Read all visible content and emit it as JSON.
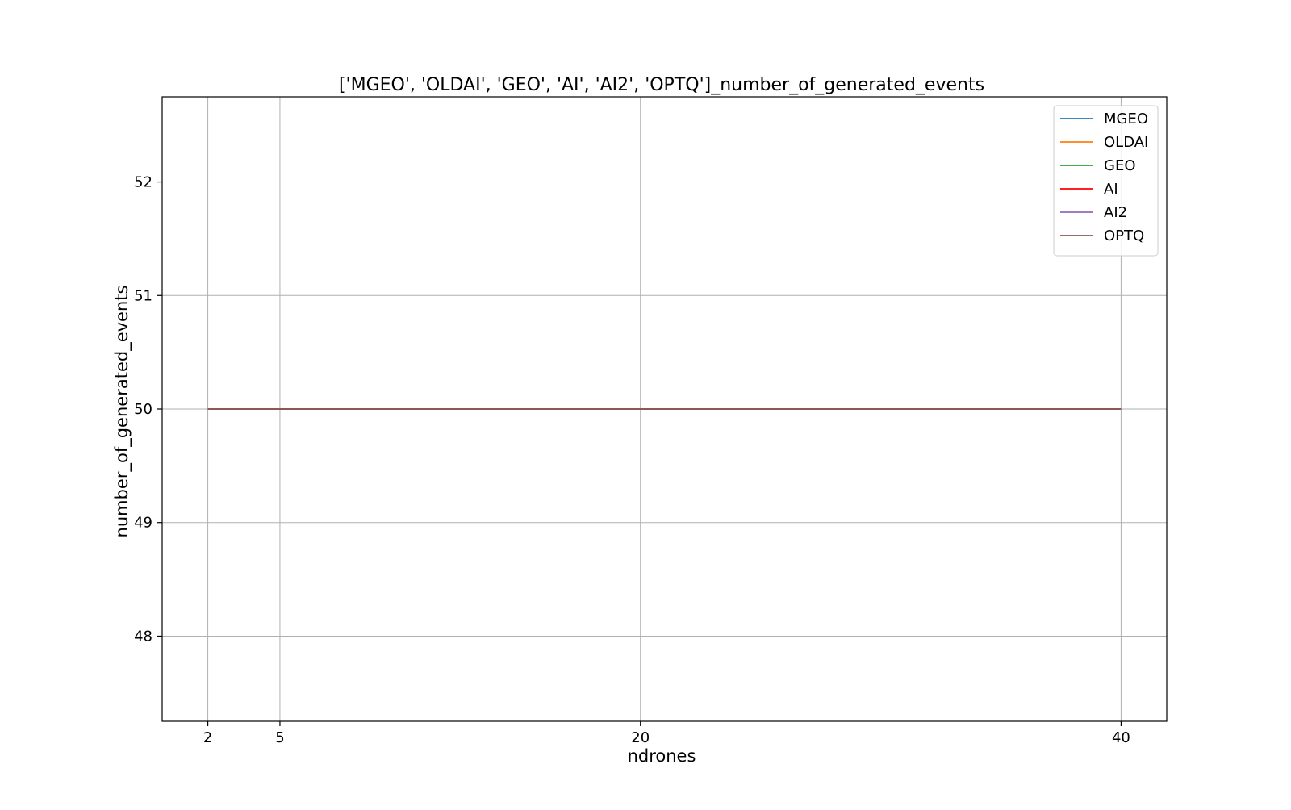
{
  "chart_data": {
    "type": "line",
    "title": "['MGEO', 'OLDAI', 'GEO', 'AI', 'AI2', 'OPTQ']_number_of_generated_events",
    "xlabel": "ndrones",
    "ylabel": "number_of_generated_events",
    "x": [
      2,
      5,
      20,
      40
    ],
    "x_ticks": [
      2,
      5,
      20,
      40
    ],
    "y_ticks": [
      48,
      49,
      50,
      51,
      52
    ],
    "xlim": [
      0.1,
      41.9
    ],
    "ylim": [
      47.25,
      52.75
    ],
    "grid": true,
    "legend_position": "top-right",
    "series": [
      {
        "name": "MGEO",
        "color": "#1f77b4",
        "values": [
          50,
          50,
          50,
          50
        ]
      },
      {
        "name": "OLDAI",
        "color": "#ff7f0e",
        "values": [
          50,
          50,
          50,
          50
        ]
      },
      {
        "name": "GEO",
        "color": "#2ca02c",
        "values": [
          50,
          50,
          50,
          50
        ]
      },
      {
        "name": "AI",
        "color": "#ff0000",
        "values": [
          50,
          50,
          50,
          50
        ]
      },
      {
        "name": "AI2",
        "color": "#9467bd",
        "values": [
          50,
          50,
          50,
          50
        ]
      },
      {
        "name": "OPTQ",
        "color": "#8c564b",
        "values": [
          50,
          50,
          50,
          50
        ]
      }
    ]
  }
}
